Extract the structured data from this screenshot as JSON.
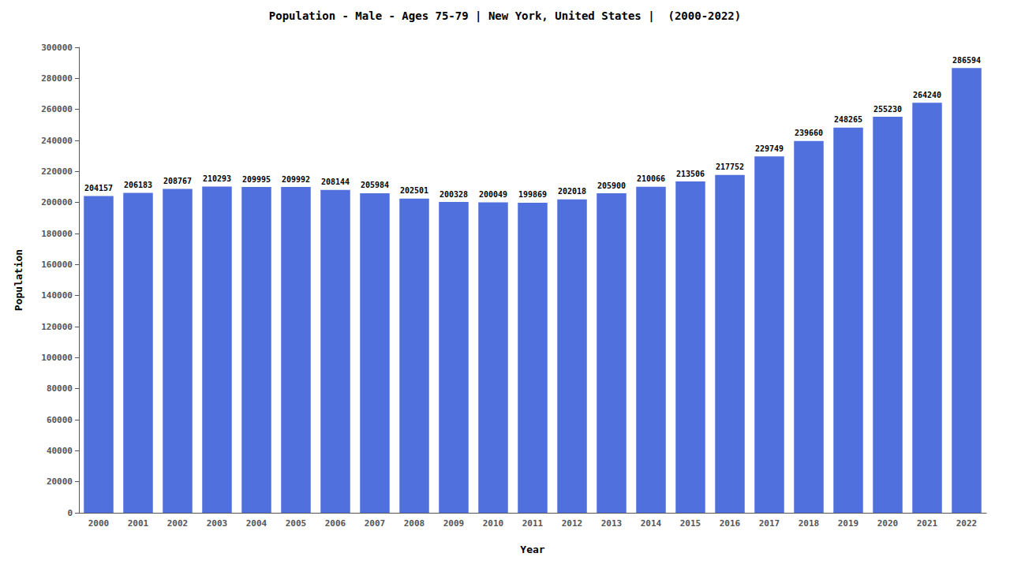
{
  "chart_data": {
    "type": "bar",
    "title": "Population - Male - Ages 75-79 | New York, United States |  (2000-2022)",
    "x_label": "Year",
    "y_label": "Population",
    "categories": [
      "2000",
      "2001",
      "2002",
      "2003",
      "2004",
      "2005",
      "2006",
      "2007",
      "2008",
      "2009",
      "2010",
      "2011",
      "2012",
      "2013",
      "2014",
      "2015",
      "2016",
      "2017",
      "2018",
      "2019",
      "2020",
      "2021",
      "2022"
    ],
    "values": [
      204157,
      206183,
      208767,
      210293,
      209995,
      209992,
      208144,
      205984,
      202501,
      200328,
      200049,
      199869,
      202018,
      205900,
      210066,
      213506,
      217752,
      229749,
      239660,
      248265,
      255230,
      264240,
      286594
    ],
    "ylim": [
      0,
      300000
    ],
    "yticks": [
      0,
      20000,
      40000,
      60000,
      80000,
      100000,
      120000,
      140000,
      160000,
      180000,
      200000,
      220000,
      240000,
      260000,
      280000,
      300000
    ],
    "grid": false,
    "data_labels": true
  }
}
